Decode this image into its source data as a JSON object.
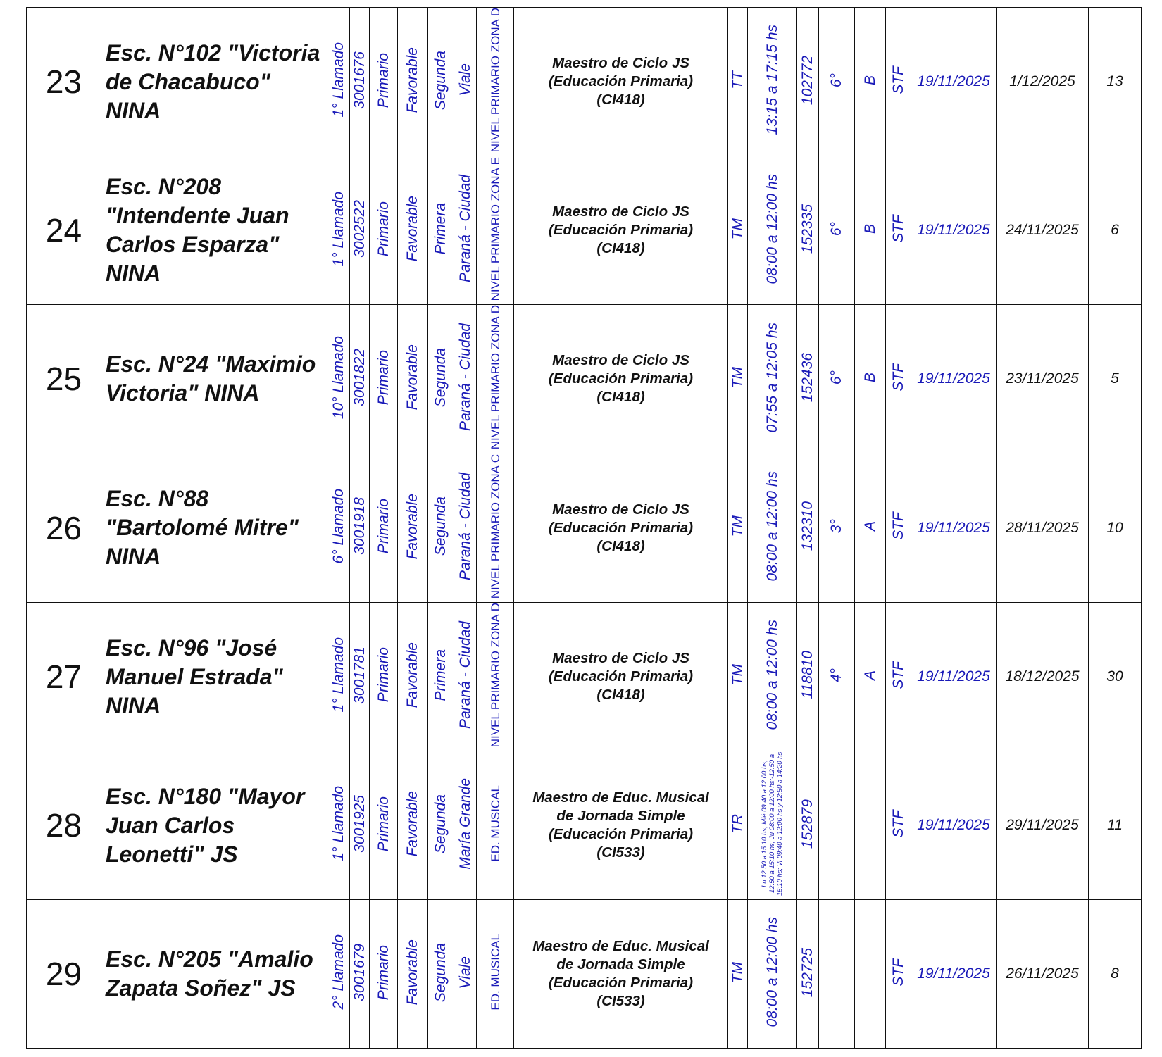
{
  "rows": [
    {
      "n": "23",
      "school": "Esc. N°102 \"Victoria de Chacabuco\" NINA",
      "llamado": "1° Llamado",
      "code": "3001676",
      "nivel": "Primario",
      "zona_tipo": "Favorable",
      "cat": "Segunda",
      "loc": "Viale",
      "dir": "NIVEL PRIMARIO ZONA D",
      "cargo": "Maestro de Ciclo JS (Educación Primaria) (CI418)",
      "turno": "TT",
      "horario": "13:15 a 17:15 hs",
      "horario_small": false,
      "plaza": "102772",
      "grado": "6°",
      "seccion": "B",
      "sit": "STF",
      "fecha1": "19/11/2025",
      "fecha2": "1/12/2025",
      "dias": "13"
    },
    {
      "n": "24",
      "school": "Esc. N°208 \"Intendente Juan Carlos Esparza\" NINA",
      "llamado": "1° Llamado",
      "code": "3002522",
      "nivel": "Primario",
      "zona_tipo": "Favorable",
      "cat": "Primera",
      "loc": "Paraná - Ciudad",
      "dir": "NIVEL PRIMARIO ZONA E",
      "cargo": "Maestro de Ciclo JS (Educación Primaria) (CI418)",
      "turno": "TM",
      "horario": "08:00 a 12:00 hs",
      "horario_small": false,
      "plaza": "152335",
      "grado": "6°",
      "seccion": "B",
      "sit": "STF",
      "fecha1": "19/11/2025",
      "fecha2": "24/11/2025",
      "dias": "6"
    },
    {
      "n": "25",
      "school": "Esc. N°24 \"Maximio Victoria\" NINA",
      "llamado": "10° Llamado",
      "code": "3001822",
      "nivel": "Primario",
      "zona_tipo": "Favorable",
      "cat": "Segunda",
      "loc": "Paraná - Ciudad",
      "dir": "NIVEL PRIMARIO ZONA D",
      "cargo": "Maestro de Ciclo JS (Educación Primaria) (CI418)",
      "turno": "TM",
      "horario": "07:55 a 12:05 hs",
      "horario_small": false,
      "plaza": "152436",
      "grado": "6°",
      "seccion": "B",
      "sit": "STF",
      "fecha1": "19/11/2025",
      "fecha2": "23/11/2025",
      "dias": "5"
    },
    {
      "n": "26",
      "school": "Esc. N°88 \"Bartolomé Mitre\" NINA",
      "llamado": "6° Llamado",
      "code": "3001918",
      "nivel": "Primario",
      "zona_tipo": "Favorable",
      "cat": "Segunda",
      "loc": "Paraná - Ciudad",
      "dir": "NIVEL PRIMARIO ZONA C",
      "cargo": "Maestro de Ciclo JS (Educación Primaria) (CI418)",
      "turno": "TM",
      "horario": "08:00 a 12:00 hs",
      "horario_small": false,
      "plaza": "132310",
      "grado": "3°",
      "seccion": "A",
      "sit": "STF",
      "fecha1": "19/11/2025",
      "fecha2": "28/11/2025",
      "dias": "10"
    },
    {
      "n": "27",
      "school": "Esc. N°96 \"José Manuel Estrada\" NINA",
      "llamado": "1° Llamado",
      "code": "3001781",
      "nivel": "Primario",
      "zona_tipo": "Favorable",
      "cat": "Primera",
      "loc": "Paraná - Ciudad",
      "dir": "NIVEL PRIMARIO ZONA D",
      "cargo": "Maestro de Ciclo JS (Educación Primaria) (CI418)",
      "turno": "TM",
      "horario": "08:00 a 12:00 hs",
      "horario_small": false,
      "plaza": "118810",
      "grado": "4°",
      "seccion": "A",
      "sit": "STF",
      "fecha1": "19/11/2025",
      "fecha2": "18/12/2025",
      "dias": "30"
    },
    {
      "n": "28",
      "school": "Esc. N°180 \"Mayor Juan Carlos Leonetti\" JS",
      "llamado": "1° Llamado",
      "code": "3001925",
      "nivel": "Primario",
      "zona_tipo": "Favorable",
      "cat": "Segunda",
      "loc": "María Grande",
      "dir": "ED. MUSICAL",
      "cargo": "Maestro de Educ. Musical de Jornada Simple (Educación Primaria) (CI533)",
      "turno": "TR",
      "horario": "Lu 12:50 a 15:10 hs; Mié 09:40 a 12:00 hs; 12:50 a 15:10 hs; Ju 08:00 a 12:00 hs;-12:50 a 15:10 hs; Vi 09:40 a 12:00 hs y 12:50 a 14:20 hs",
      "horario_small": true,
      "plaza": "152879",
      "grado": "",
      "seccion": "",
      "sit": "STF",
      "fecha1": "19/11/2025",
      "fecha2": "29/11/2025",
      "dias": "11"
    },
    {
      "n": "29",
      "school": "Esc. N°205 \"Amalio Zapata Soñez\" JS",
      "llamado": "2° Llamado",
      "code": "3001679",
      "nivel": "Primario",
      "zona_tipo": "Favorable",
      "cat": "Segunda",
      "loc": "Viale",
      "dir": "ED. MUSICAL",
      "cargo": "Maestro de Educ. Musical de Jornada Simple (Educación Primaria) (CI533)",
      "turno": "TM",
      "horario": "08:00 a 12:00 hs",
      "horario_small": false,
      "plaza": "152725",
      "grado": "",
      "seccion": "",
      "sit": "STF",
      "fecha1": "19/11/2025",
      "fecha2": "26/11/2025",
      "dias": "8"
    }
  ]
}
